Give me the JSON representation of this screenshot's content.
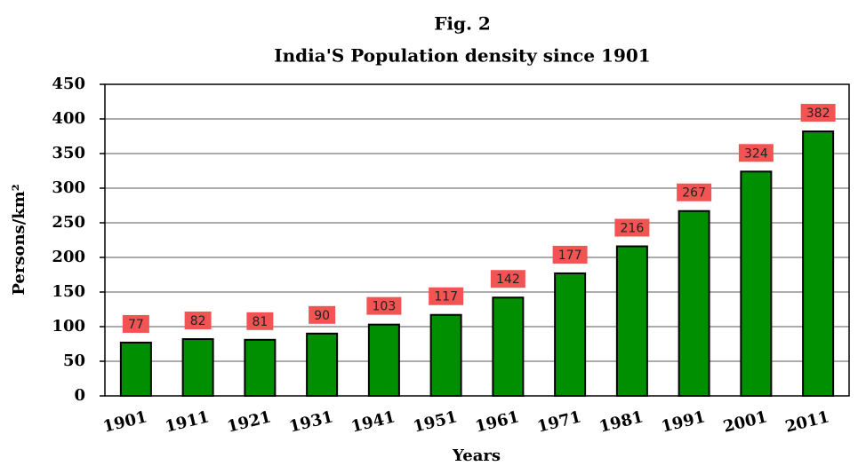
{
  "chart_data": {
    "type": "bar",
    "title": "Fig. 2",
    "subtitle": "India'S Population density since 1901",
    "x_label": "Years",
    "y_label": "Persons/km²",
    "categories": [
      "1901",
      "1911",
      "1921",
      "1931",
      "1941",
      "1951",
      "1961",
      "1971",
      "1981",
      "1991",
      "2001",
      "2011"
    ],
    "values": [
      77,
      82,
      81,
      90,
      103,
      117,
      142,
      177,
      216,
      267,
      324,
      382
    ],
    "color": "#008f00",
    "label_color": "#f25454",
    "ylim": [
      0,
      450
    ],
    "yticks": [
      0,
      50,
      100,
      150,
      200,
      250,
      300,
      350,
      400,
      450
    ],
    "grid": true
  }
}
